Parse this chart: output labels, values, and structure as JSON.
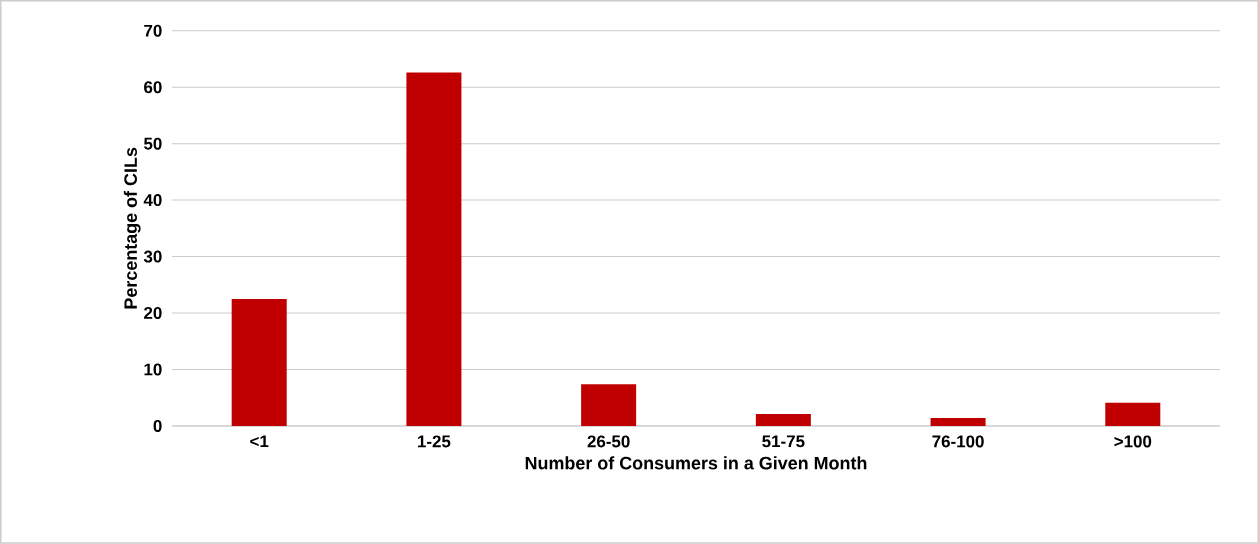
{
  "chart_data": {
    "type": "bar",
    "xlabel": "Number of Consumers in a Given Month",
    "ylabel": "Percentage of CILs",
    "categories": [
      "<1",
      "1-25",
      "26-50",
      "51-75",
      "76-100",
      ">100"
    ],
    "values": [
      22.5,
      62.6,
      7.4,
      2.1,
      1.4,
      4.1
    ],
    "color": "#c00000",
    "ylim": [
      0,
      70
    ],
    "yticks": [
      0,
      10,
      20,
      30,
      40,
      50,
      60,
      70
    ],
    "grid": "y"
  }
}
